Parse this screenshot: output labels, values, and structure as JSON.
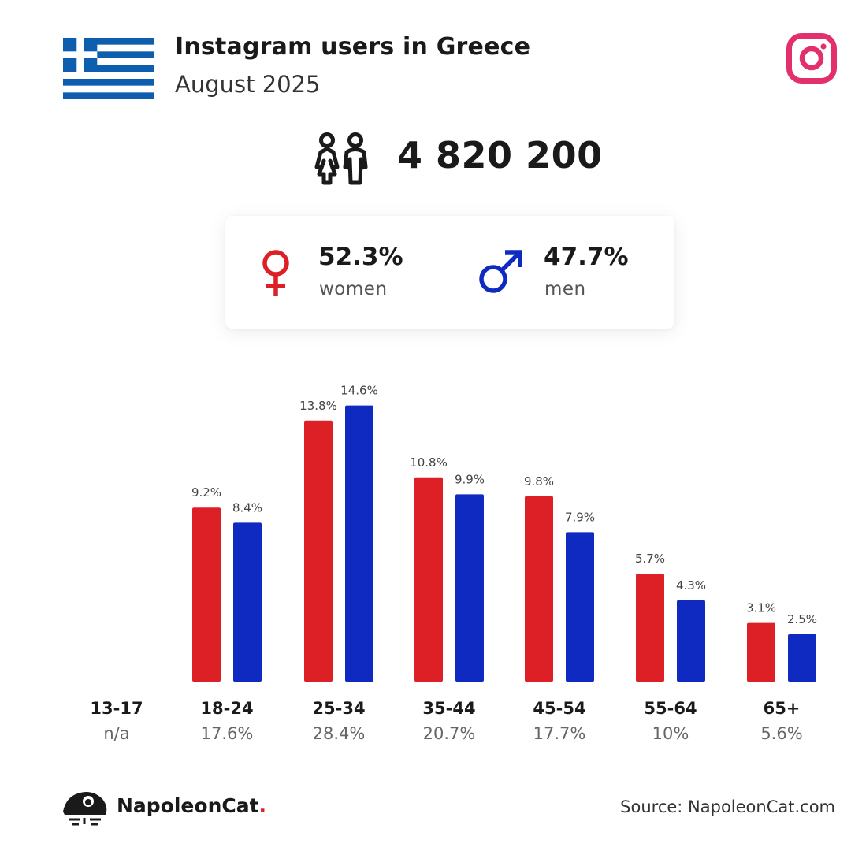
{
  "header": {
    "title": "Instagram users in Greece",
    "subtitle": "August 2025"
  },
  "total": {
    "value": "4 820 200",
    "icon": "people-icon"
  },
  "gender": {
    "women_pct": "52.3%",
    "women_label": "women",
    "men_pct": "47.7%",
    "men_label": "men"
  },
  "colors": {
    "women": "#dd1f26",
    "men": "#0e2ac0",
    "instagram": "#e1306c",
    "flag_blue": "#0d5eaf"
  },
  "chart_data": {
    "type": "bar",
    "categories": [
      "13-17",
      "18-24",
      "25-34",
      "35-44",
      "45-54",
      "55-64",
      "65+"
    ],
    "category_totals": [
      "n/a",
      "17.6%",
      "28.4%",
      "20.7%",
      "17.7%",
      "10%",
      "5.6%"
    ],
    "series": [
      {
        "values": [
          null,
          9.2,
          13.8,
          10.8,
          9.8,
          5.7,
          3.1
        ],
        "labels": [
          "",
          "9.2%",
          "13.8%",
          "10.8%",
          "9.8%",
          "5.7%",
          "3.1%"
        ],
        "color": "#dd1f26"
      },
      {
        "values": [
          null,
          8.4,
          14.6,
          9.9,
          7.9,
          4.3,
          2.5
        ],
        "labels": [
          "",
          "8.4%",
          "14.6%",
          "9.9%",
          "7.9%",
          "4.3%",
          "2.5%"
        ],
        "color": "#0e2ac0"
      }
    ],
    "unit": "%",
    "grid": false
  },
  "footer": {
    "brand_name": "NapoleonCat",
    "brand_dot": ".",
    "source": "Source: NapoleonCat.com"
  }
}
